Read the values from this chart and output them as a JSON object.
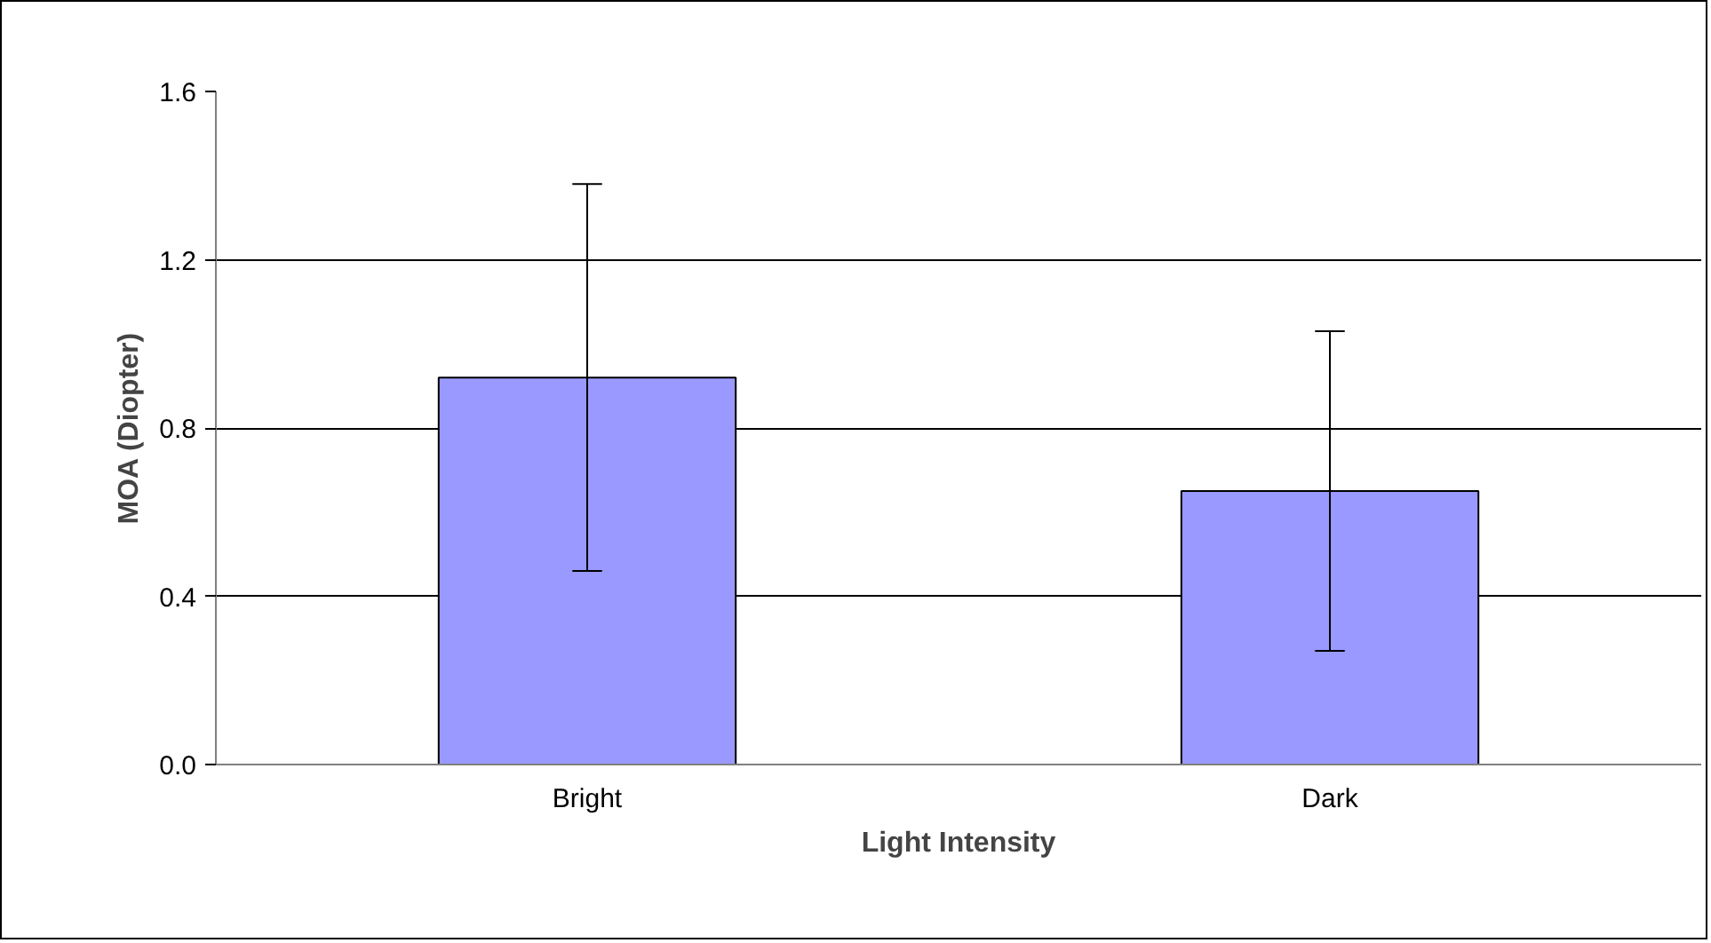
{
  "chart_data": {
    "type": "bar",
    "xlabel": "Light Intensity",
    "ylabel": "MOA (Diopter)",
    "categories": [
      "Bright",
      "Dark"
    ],
    "values": [
      0.92,
      0.65
    ],
    "errors": [
      0.46,
      0.38
    ],
    "color": "#9999ff",
    "ylim": [
      0,
      1.6
    ],
    "yticks": [
      "0.0",
      0.4,
      0.8,
      1.2,
      1.6
    ],
    "grid": "y"
  }
}
